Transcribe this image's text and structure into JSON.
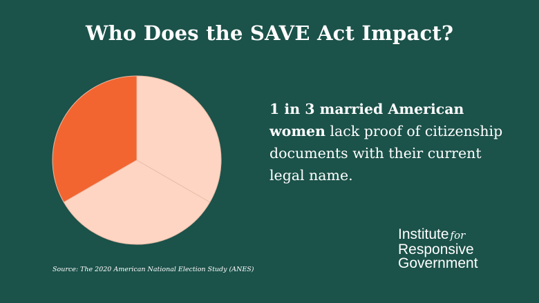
{
  "title": "Who Does the SAVE Act Impact?",
  "statement": {
    "bold": "1 in 3 married American women",
    "rest": "lack proof of citizenship documents with their current legal name."
  },
  "source": "Source: The 2020 American National Election Study (ANES)",
  "logo": {
    "line1": "Institute",
    "for": "for",
    "line2": "Responsive",
    "line3": "Government"
  },
  "colors": {
    "background": "#1b524a",
    "highlight_slice": "#f26530",
    "other_slices": "#fdd5c2",
    "slice_divider": "#e8bca8"
  },
  "chart_data": {
    "type": "pie",
    "slices": [
      {
        "value": 1,
        "color": "#f26530"
      },
      {
        "value": 1,
        "color": "#fdd5c2"
      },
      {
        "value": 1,
        "color": "#fdd5c2"
      }
    ]
  }
}
